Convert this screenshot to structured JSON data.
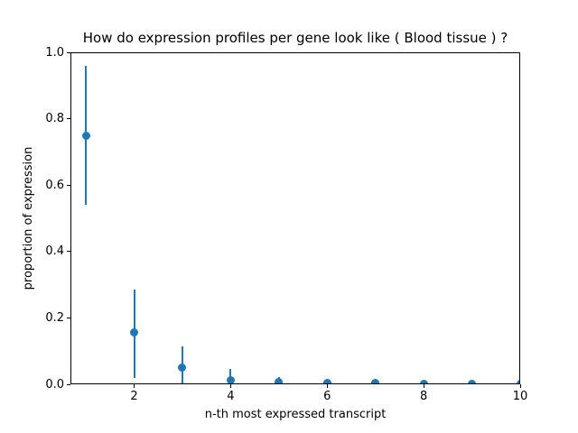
{
  "chart_data": {
    "type": "scatter",
    "title": "How do expression profiles per gene look like ( Blood tissue ) ?",
    "xlabel": "n-th most expressed transcript",
    "ylabel": "proportion of expression",
    "xlim": [
      0.68,
      10.0
    ],
    "ylim": [
      0.0,
      1.0
    ],
    "x_ticks": [
      2,
      4,
      6,
      8,
      10
    ],
    "x_tick_labels": [
      "2",
      "4",
      "6",
      "8",
      "10"
    ],
    "y_ticks": [
      0.0,
      0.2,
      0.4,
      0.6,
      0.8,
      1.0
    ],
    "y_tick_labels": [
      "0.0",
      "0.2",
      "0.4",
      "0.6",
      "0.8",
      "1.0"
    ],
    "grid": false,
    "legend": "none",
    "marker_color": "#1f77b4",
    "points": [
      {
        "x": 1,
        "y": 0.75,
        "err_low": 0.54,
        "err_high": 0.96
      },
      {
        "x": 2,
        "y": 0.155,
        "err_low": 0.02,
        "err_high": 0.285
      },
      {
        "x": 3,
        "y": 0.05,
        "err_low": 0.0,
        "err_high": 0.113
      },
      {
        "x": 4,
        "y": 0.012,
        "err_low": 0.0,
        "err_high": 0.047
      },
      {
        "x": 5,
        "y": 0.007,
        "err_low": 0.0,
        "err_high": 0.023
      },
      {
        "x": 6,
        "y": 0.005,
        "err_low": 0.0,
        "err_high": 0.009
      },
      {
        "x": 7,
        "y": 0.005,
        "err_low": 0.0,
        "err_high": 0.007
      },
      {
        "x": 8,
        "y": 0.002,
        "err_low": 0.0,
        "err_high": 0.004
      },
      {
        "x": 9,
        "y": 0.002,
        "err_low": 0.0,
        "err_high": 0.004
      },
      {
        "x": 10,
        "y": 0.001,
        "err_low": 0.0,
        "err_high": 0.002
      }
    ]
  }
}
